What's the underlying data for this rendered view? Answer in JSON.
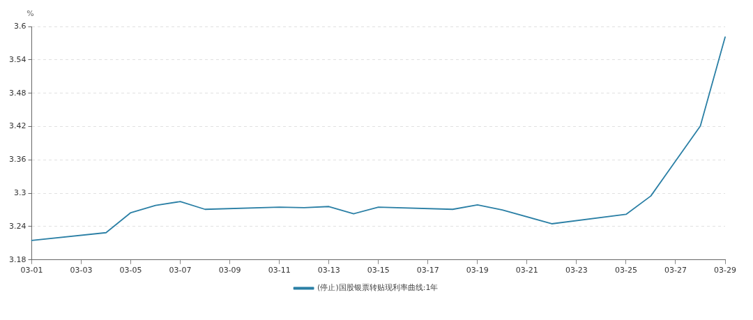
{
  "chart_data": {
    "type": "line",
    "ylabel": "%",
    "legend": "bottom",
    "grid": "y",
    "marker": "none",
    "line_style": "solid",
    "xlim": [
      "--03-01",
      "--03-29"
    ],
    "xticks": [
      {
        "value": "--03-01",
        "label": "03-01"
      },
      {
        "value": "--03-03",
        "label": "03-03"
      },
      {
        "value": "--03-05",
        "label": "03-05"
      },
      {
        "value": "--03-07",
        "label": "03-07"
      },
      {
        "value": "--03-09",
        "label": "03-09"
      },
      {
        "value": "--03-11",
        "label": "03-11"
      },
      {
        "value": "--03-13",
        "label": "03-13"
      },
      {
        "value": "--03-15",
        "label": "03-15"
      },
      {
        "value": "--03-17",
        "label": "03-17"
      },
      {
        "value": "--03-19",
        "label": "03-19"
      },
      {
        "value": "--03-21",
        "label": "03-21"
      },
      {
        "value": "--03-23",
        "label": "03-23"
      },
      {
        "value": "--03-25",
        "label": "03-25"
      },
      {
        "value": "--03-27",
        "label": "03-27"
      },
      {
        "value": "--03-29",
        "label": "03-29"
      }
    ],
    "ylim": [
      3.18,
      3.6
    ],
    "yticks": [
      3.18,
      3.24,
      3.3,
      3.36,
      3.42,
      3.48,
      3.54,
      3.6
    ],
    "x": [
      "--03-01",
      "--03-04",
      "--03-05",
      "--03-06",
      "--03-07",
      "--03-08",
      "--03-11",
      "--03-12",
      "--03-13",
      "--03-14",
      "--03-15",
      "--03-18",
      "--03-19",
      "--03-20",
      "--03-22",
      "--03-25",
      "--03-26",
      "--03-28",
      "--03-29"
    ],
    "series": [
      {
        "name": "(停止)国股银票转贴现利率曲线:1年",
        "color": "#2a7fa5",
        "values": [
          3.215,
          3.229,
          3.265,
          3.278,
          3.285,
          3.271,
          3.275,
          3.274,
          3.276,
          3.263,
          3.275,
          3.271,
          3.279,
          3.27,
          3.245,
          3.262,
          3.295,
          3.421,
          3.581
        ]
      }
    ]
  }
}
